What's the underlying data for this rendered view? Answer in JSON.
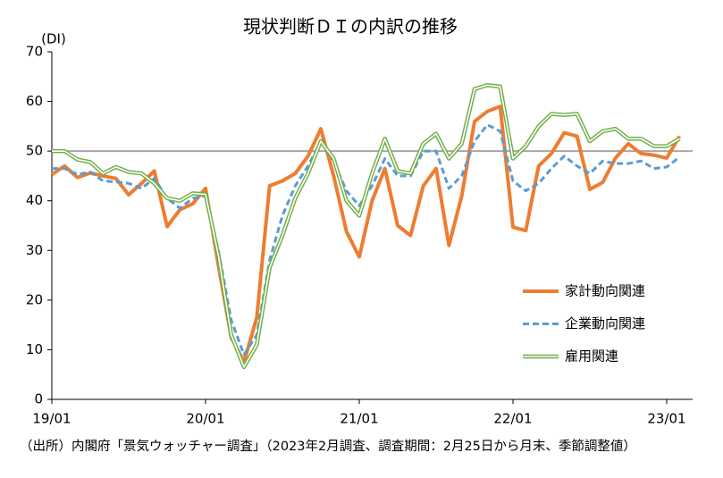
{
  "chart_data": {
    "type": "line",
    "title": "現状判断ＤＩの内訳の推移",
    "y_axis_label": "(DI)",
    "source_note": "（出所）内閣府「景気ウォッチャー調査」（2023年2月調査、調査期間：2月25日から月末、季節調整値）",
    "categories": [
      "19/01",
      null,
      null,
      null,
      null,
      null,
      null,
      null,
      null,
      null,
      null,
      null,
      "20/01",
      null,
      null,
      null,
      null,
      null,
      null,
      null,
      null,
      null,
      null,
      null,
      "21/01",
      null,
      null,
      null,
      null,
      null,
      null,
      null,
      null,
      null,
      null,
      null,
      "22/01",
      null,
      null,
      null,
      null,
      null,
      null,
      null,
      null,
      null,
      null,
      null,
      "23/01",
      null
    ],
    "ylim": [
      0,
      70
    ],
    "yticks": [
      0,
      10,
      20,
      30,
      40,
      50,
      60,
      70
    ],
    "reference_line": 50,
    "reference_color": "#a6a6a6",
    "legend": "right",
    "series": [
      {
        "name": "家計動向関連",
        "color": "#ed7d31",
        "style": "solid",
        "values": [
          45.3,
          47,
          44.7,
          45.6,
          45,
          44.5,
          41.2,
          43.5,
          46,
          34.8,
          38.2,
          39.4,
          42.5,
          27,
          12.5,
          7.5,
          16.5,
          43,
          44,
          45.5,
          49,
          54.5,
          45,
          33.8,
          28.7,
          40,
          46.5,
          35,
          33,
          43,
          46.5,
          31,
          41,
          56,
          58,
          59,
          34.7,
          34,
          47,
          49.5,
          53.7,
          53,
          42.3,
          43.7,
          48.6,
          51.5,
          49.5,
          49.2,
          48.6,
          53
        ]
      },
      {
        "name": "企業動向関連",
        "color": "#5b9bd5",
        "style": "dashed",
        "values": [
          46.5,
          46.5,
          45.3,
          45.8,
          44,
          43.8,
          43.5,
          42.5,
          44.5,
          40.5,
          38.5,
          40.5,
          41,
          30,
          16,
          9,
          13,
          28,
          37,
          43,
          47,
          52,
          48,
          42,
          39,
          43,
          48.5,
          45,
          45,
          50,
          50,
          42.5,
          45,
          52,
          55.3,
          54,
          44,
          42,
          43.5,
          46.5,
          49,
          47,
          45.5,
          48,
          47.5,
          47.5,
          48,
          46.5,
          46.8,
          48.8
        ]
      },
      {
        "name": "雇用関連",
        "color": "#70ad47",
        "style": "double",
        "values": [
          50,
          50,
          48.3,
          47.8,
          45.5,
          46.8,
          45.8,
          45.5,
          43.5,
          40.5,
          40,
          41.5,
          41.3,
          29,
          13,
          6.5,
          11,
          26.5,
          33,
          40.5,
          45.5,
          52,
          48.5,
          40,
          37,
          45.5,
          52.5,
          46,
          45.5,
          51.5,
          53.5,
          48.5,
          51.5,
          62.5,
          63.3,
          63,
          48.5,
          51,
          55,
          57.5,
          57.3,
          57.5,
          52,
          54,
          54.5,
          52.5,
          52.5,
          51,
          51,
          52.5
        ]
      }
    ]
  }
}
